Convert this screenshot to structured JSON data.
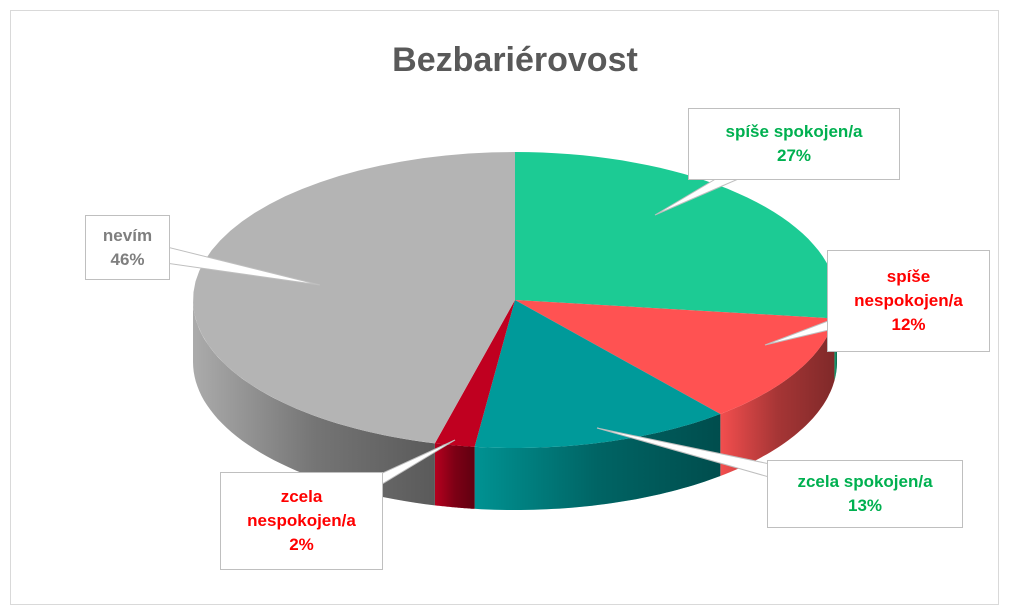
{
  "chart_data": {
    "type": "pie",
    "title": "Bezbariérovost",
    "categories": [
      "spíše spokojen/a",
      "spíše nespokojen/a",
      "zcela spokojen/a",
      "zcela nespokojen/a",
      "nevím"
    ],
    "values": [
      27,
      12,
      13,
      2,
      46
    ],
    "value_labels": [
      "27%",
      "12%",
      "13%",
      "2%",
      "46%"
    ],
    "colors": [
      "#1ccb94",
      "#ff5252",
      "#009a9a",
      "#c00020",
      "#b4b4b4"
    ],
    "label_colors": [
      "#00b050",
      "#ff0000",
      "#00b050",
      "#ff0000",
      "#7f7f7f"
    ]
  }
}
